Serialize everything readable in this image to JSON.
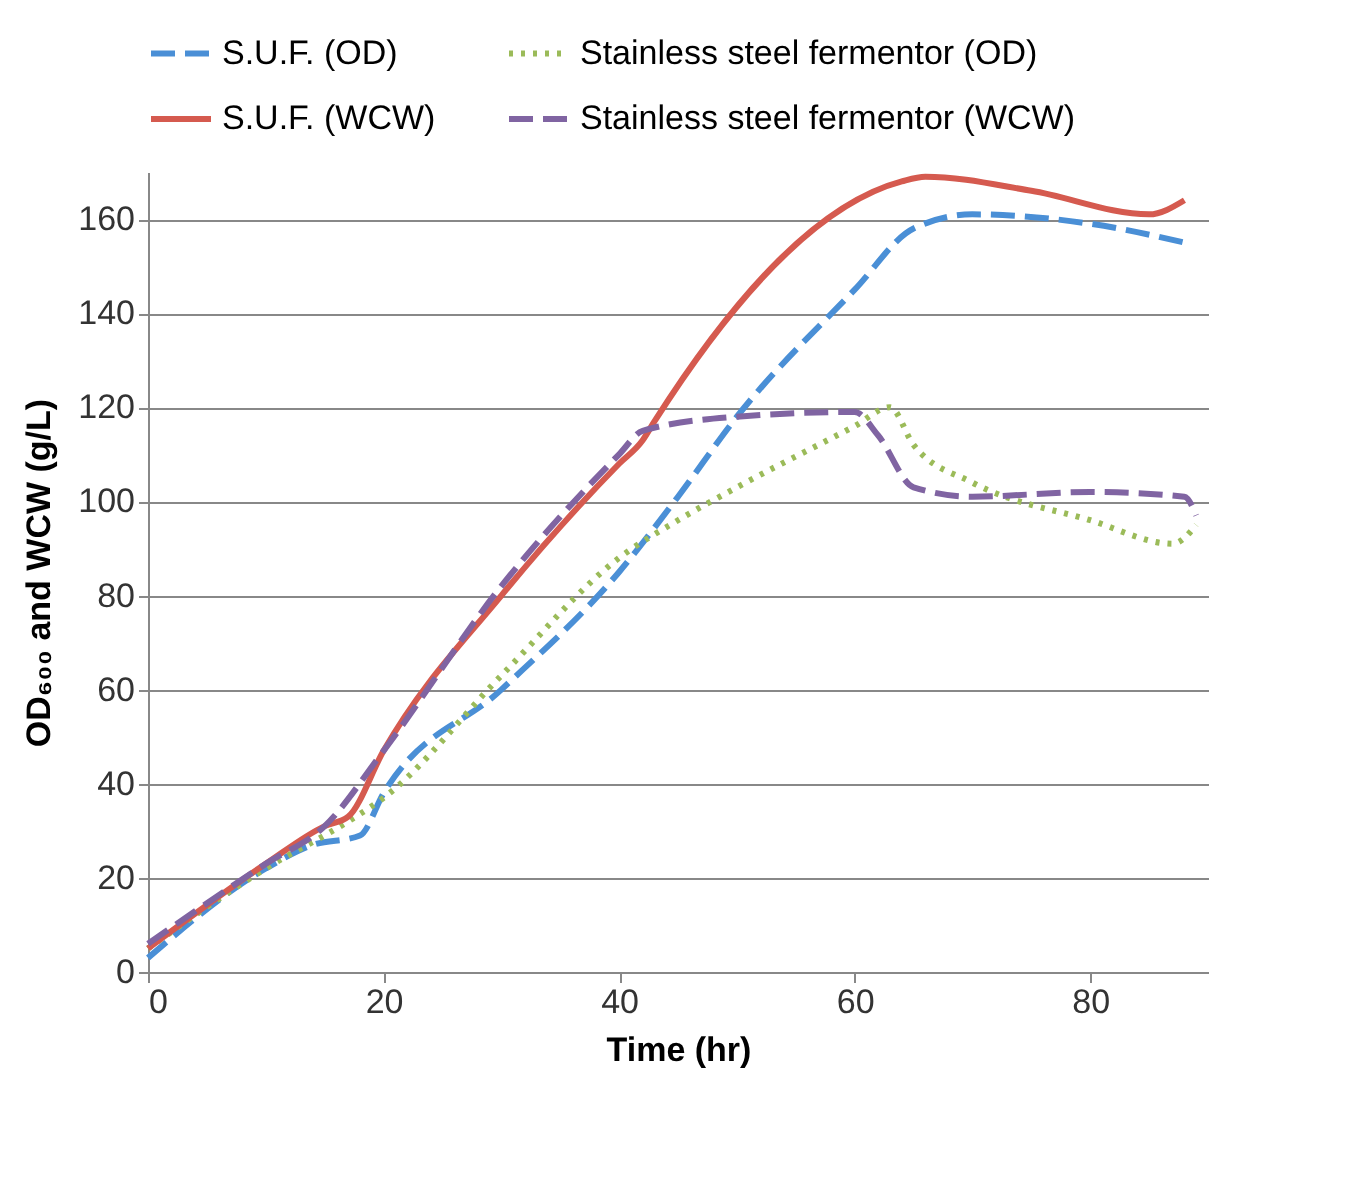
{
  "chart_data": {
    "type": "line",
    "xlabel": "Time (hr)",
    "ylabel": "OD₆₀₀ and  WCW (g/L)",
    "xlim": [
      0,
      90
    ],
    "xticks": [
      0,
      20,
      40,
      60,
      80
    ],
    "ylim": [
      0,
      170
    ],
    "yticks": [
      0,
      20,
      40,
      60,
      80,
      100,
      120,
      140,
      160
    ],
    "grid": "y",
    "legend": "top",
    "series": [
      {
        "name": "S.U.F. (OD)",
        "color": "#4a8fd6",
        "line_style": "dashed",
        "x": [
          0,
          10,
          14,
          18,
          20,
          30,
          40,
          45,
          50,
          60,
          65,
          70,
          80,
          88
        ],
        "values": [
          3,
          22,
          27,
          29,
          38,
          60,
          85,
          101,
          118,
          145,
          158,
          161,
          159,
          155
        ]
      },
      {
        "name": "Stainless steel fermentor (OD)",
        "color": "#9bbb59",
        "line_style": "dotted",
        "x": [
          0,
          10,
          17,
          20,
          30,
          40,
          45,
          50,
          60,
          63,
          65,
          70,
          80,
          87,
          89
        ],
        "values": [
          5,
          22,
          32,
          37,
          63,
          88,
          96,
          103,
          116,
          120,
          112,
          104,
          96,
          91,
          95
        ]
      },
      {
        "name": "S.U.F. (WCW)",
        "color": "#d55a4f",
        "line_style": "solid",
        "x": [
          0,
          10,
          15,
          17,
          20,
          30,
          40,
          42,
          43,
          64,
          66,
          75,
          85,
          88
        ],
        "values": [
          5,
          23,
          31,
          33,
          47,
          80,
          108,
          113,
          117,
          168,
          169,
          166,
          161,
          164
        ]
      },
      {
        "name": "Stainless steel fermentor (WCW)",
        "color": "#8064a2",
        "line_style": "dashed",
        "x": [
          0,
          10,
          15,
          20,
          30,
          40,
          42,
          50,
          60,
          62,
          65,
          70,
          80,
          88,
          89
        ],
        "values": [
          6,
          23,
          31,
          47,
          82,
          110,
          115,
          118,
          119,
          114,
          103,
          101,
          102,
          101,
          97
        ]
      }
    ]
  }
}
